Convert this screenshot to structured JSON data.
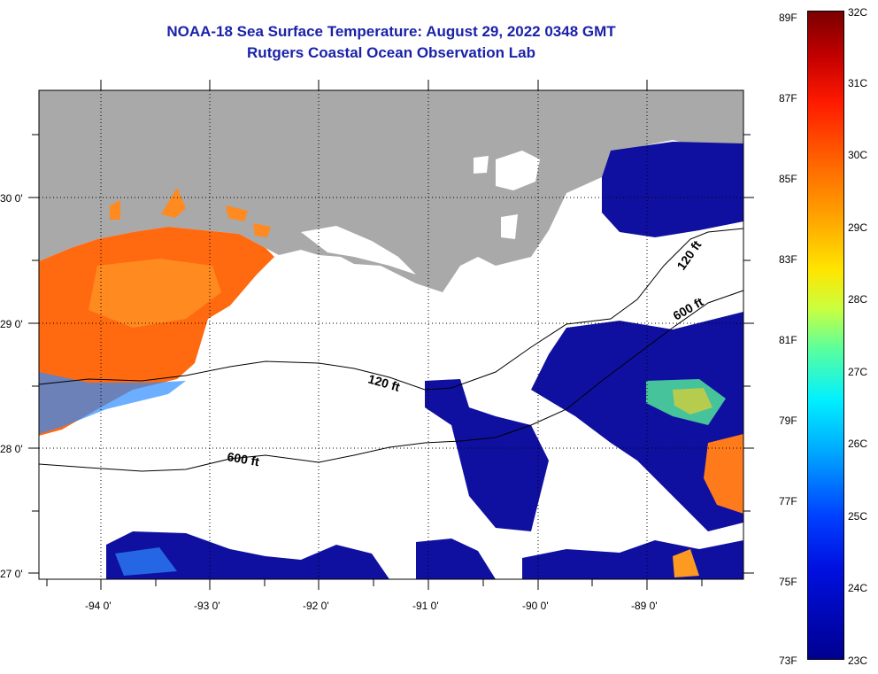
{
  "title": "NOAA-18 Sea Surface Temperature:  August 29, 2022 0348 GMT",
  "subtitle": "Rutgers Coastal Ocean Observation Lab",
  "axes": {
    "lon_labels": [
      "-94 0'",
      "-93 0'",
      "-92 0'",
      "-91 0'",
      "-90 0'",
      "-89 0'"
    ],
    "lat_labels": [
      "30 0'",
      "29 0'",
      "28 0'",
      "27 0'"
    ]
  },
  "contours": {
    "c120_left": "120 ft",
    "c600_left": "600 ft",
    "c120_right": "120 ft",
    "c600_right": "600 ft"
  },
  "colorbar": {
    "fahrenheit": [
      "89F",
      "87F",
      "85F",
      "83F",
      "81F",
      "79F",
      "77F",
      "75F",
      "73F"
    ],
    "celsius": [
      "32C",
      "31C",
      "30C",
      "29C",
      "28C",
      "27C",
      "26C",
      "25C",
      "24C",
      "23C"
    ]
  },
  "colors": {
    "land": "#a9a9a9",
    "warm_water": "#ff6a10",
    "cool_water": "#1010a0",
    "title": "#1a22a8"
  }
}
